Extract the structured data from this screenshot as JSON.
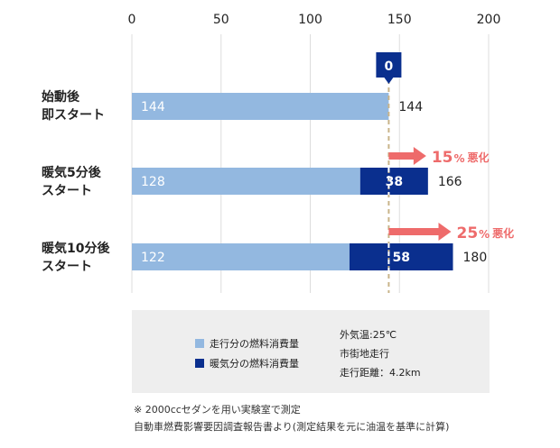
{
  "chart_data": {
    "type": "bar",
    "orientation": "horizontal",
    "stacked": true,
    "x_ticks": [
      0,
      50,
      100,
      150,
      200
    ],
    "xlim": [
      0,
      200
    ],
    "grid": true,
    "categories": [
      "始動後\n即スタート",
      "暖気5分後\nスタート",
      "暖気10分後\nスタート"
    ],
    "series": [
      {
        "name": "走行分の燃料消費量",
        "color": "#93b8e0",
        "values": [
          144,
          128,
          122
        ]
      },
      {
        "name": "暖気分の燃料消費量",
        "color": "#0a2f8e",
        "values": [
          0,
          38,
          58
        ]
      }
    ],
    "totals": [
      144,
      166,
      180
    ],
    "reference_value": 144,
    "baseline_warmup_label": "0",
    "deterioration": [
      {
        "category_index": 1,
        "percent": "15",
        "unit": "%",
        "text": "悪化"
      },
      {
        "category_index": 2,
        "percent": "25",
        "unit": "%",
        "text": "悪化"
      }
    ],
    "arrow_color": "#ee6b6b"
  },
  "conditions": [
    "外気温:25℃",
    "市街地走行",
    "走行距離：4.2km"
  ],
  "notes": [
    "※ 2000ccセダンを用い実験室で測定",
    "自動車燃費影響要因調査報告書より(測定結果を元に油温を基準に計算)"
  ]
}
